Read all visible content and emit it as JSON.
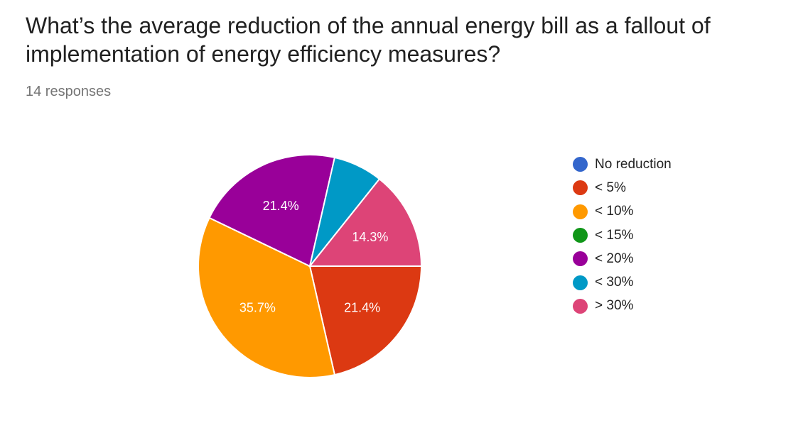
{
  "title": "What’s the average reduction of the annual energy bill as a fallout of implementation of energy efficiency measures?",
  "responses": "14 responses",
  "chart_data": {
    "type": "pie",
    "title": "What’s the average reduction of the annual energy bill as a fallout of implementation of energy efficiency measures?",
    "categories": [
      "No reduction",
      "< 5%",
      "< 10%",
      "< 15%",
      "< 20%",
      "< 30%",
      "> 30%"
    ],
    "values": [
      0,
      3,
      5,
      0,
      3,
      1,
      2
    ],
    "percent_labels": [
      "",
      "21.4%",
      "35.7%",
      "",
      "21.4%",
      "",
      "14.3%"
    ],
    "colors": [
      "#3366cc",
      "#dc3912",
      "#ff9900",
      "#109618",
      "#990099",
      "#0099c6",
      "#dd4477"
    ],
    "legend_position": "right"
  }
}
